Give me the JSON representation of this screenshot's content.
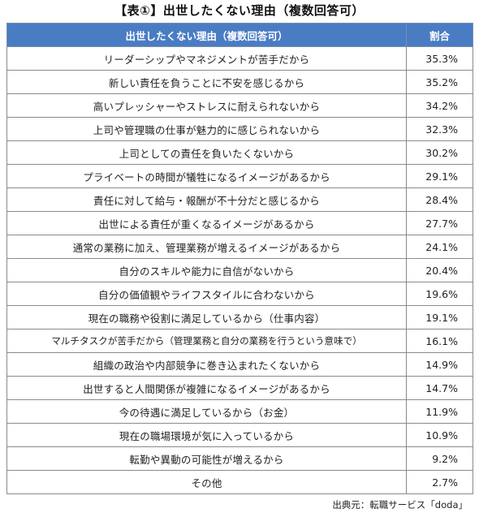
{
  "title": "【表①】出世したくない理由（複数回答可）",
  "table": {
    "headers": [
      "出世したくない理由（複数回答可）",
      "割合"
    ],
    "rows": [
      {
        "reason": "リーダーシップやマネジメントが苦手だから",
        "pct": "35.3%"
      },
      {
        "reason": "新しい責任を負うことに不安を感じるから",
        "pct": "35.2%"
      },
      {
        "reason": "高いプレッシャーやストレスに耐えられないから",
        "pct": "34.2%"
      },
      {
        "reason": "上司や管理職の仕事が魅力的に感じられないから",
        "pct": "32.3%"
      },
      {
        "reason": "上司としての責任を負いたくないから",
        "pct": "30.2%"
      },
      {
        "reason": "プライベートの時間が犠牲になるイメージがあるから",
        "pct": "29.1%"
      },
      {
        "reason": "責任に対して給与・報酬が不十分だと感じるから",
        "pct": "28.4%"
      },
      {
        "reason": "出世による責任が重くなるイメージがあるから",
        "pct": "27.7%"
      },
      {
        "reason": "通常の業務に加え、管理業務が増えるイメージがあるから",
        "pct": "24.1%"
      },
      {
        "reason": "自分のスキルや能力に自信がないから",
        "pct": "20.4%"
      },
      {
        "reason": "自分の価値観やライフスタイルに合わないから",
        "pct": "19.6%"
      },
      {
        "reason": "現在の職務や役割に満足しているから（仕事内容）",
        "pct": "19.1%"
      },
      {
        "reason": "マルチタスクが苦手だから（管理業務と自分の業務を行うという意味で）",
        "pct": "16.1%"
      },
      {
        "reason": "組織の政治や内部競争に巻き込まれたくないから",
        "pct": "14.9%"
      },
      {
        "reason": "出世すると人間関係が複雑になるイメージがあるから",
        "pct": "14.7%"
      },
      {
        "reason": "今の待遇に満足しているから（お金）",
        "pct": "11.9%"
      },
      {
        "reason": "現在の職場環境が気に入っているから",
        "pct": "10.9%"
      },
      {
        "reason": "転勤や異動の可能性が増えるから",
        "pct": "9.2%"
      },
      {
        "reason": "その他",
        "pct": "2.7%"
      }
    ]
  },
  "source": "出典元：転職サービス「doda」",
  "colors": {
    "header_bg": "#4a7cc4",
    "header_text": "#ffffff",
    "border": "#8a8a8a"
  }
}
